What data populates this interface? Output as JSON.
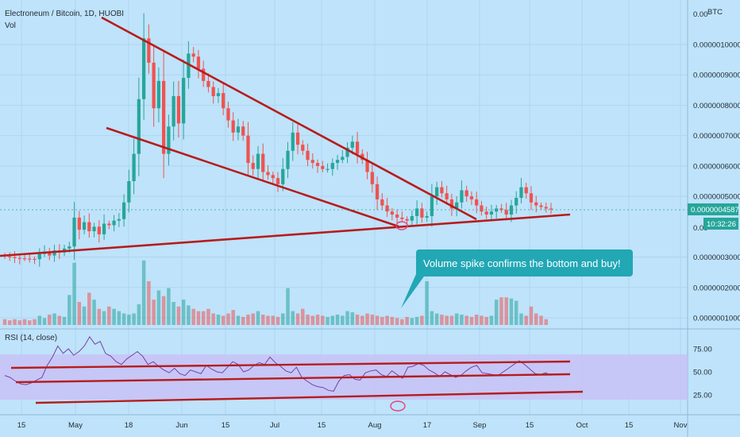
{
  "header": {
    "title": "Electroneum / Bitcoin, 1D, HUOBI",
    "vol_label": "Vol",
    "currency": "BTC"
  },
  "price_axis": {
    "ticks": [
      "0.0000010000",
      "0.0000009000",
      "0.0000008000",
      "0.0000007000",
      "0.0000006000",
      "0.0000005000",
      "0.0000003000",
      "0.0000002000",
      "0.0000001000"
    ],
    "top_partial": "0.00",
    "mid_partial": "0.00",
    "current_price": "0.0000004587",
    "countdown": "10:32:26"
  },
  "rsi": {
    "label": "RSI (14, close)",
    "ticks": [
      "75.00",
      "50.00",
      "25.00"
    ],
    "values": [
      46,
      44,
      40,
      37,
      36,
      38,
      41,
      44,
      57,
      66,
      78,
      70,
      75,
      68,
      72,
      78,
      88,
      80,
      83,
      70,
      67,
      61,
      58,
      64,
      68,
      72,
      67,
      58,
      61,
      56,
      52,
      49,
      54,
      48,
      46,
      52,
      50,
      48,
      57,
      53,
      50,
      49,
      55,
      61,
      58,
      50,
      52,
      57,
      60,
      58,
      66,
      60,
      56,
      51,
      49,
      55,
      44,
      40,
      36,
      34,
      33,
      30,
      29,
      40,
      46,
      47,
      42,
      41,
      49,
      51,
      52,
      47,
      45,
      51,
      47,
      43,
      55,
      56,
      59,
      57,
      52,
      49,
      45,
      50,
      47,
      44,
      46,
      51,
      55,
      57,
      49,
      48,
      47,
      46,
      50,
      54,
      58,
      62,
      58,
      53,
      48,
      47,
      49,
      46
    ]
  },
  "x_axis": {
    "ticks": [
      "15",
      "May",
      "18",
      "Jun",
      "15",
      "Jul",
      "15",
      "Aug",
      "17",
      "Sep",
      "15",
      "Oct",
      "15",
      "Nov"
    ]
  },
  "annotation": {
    "text": "Volume spike confirms the bottom and buy!"
  },
  "colors": {
    "background": "#bfe3fa",
    "up": "#26a69a",
    "down": "#ef5350",
    "trendline": "#b71c1c",
    "rsi_line": "#7b3fa6",
    "rsi_band": "#c8bff6",
    "callout": "#22a7b5",
    "price_tag": "#26a69a"
  },
  "chart_data": {
    "type": "candlestick",
    "title": "Electroneum / Bitcoin, 1D, HUOBI",
    "unit": "BTC",
    "ylim": [
      8e-08,
      1.1e-06
    ],
    "candles_close": [
      3.02e-07,
      3e-07,
      2.97e-07,
      2.96e-07,
      2.95e-07,
      2.94e-07,
      2.93e-07,
      3.1e-07,
      3.18e-07,
      3.05e-07,
      3.22e-07,
      3.15e-07,
      3.28e-07,
      3.35e-07,
      4.3e-07,
      3.9e-07,
      4.15e-07,
      3.85e-07,
      4e-07,
      3.75e-07,
      4.1e-07,
      4.05e-07,
      4.2e-07,
      4.25e-07,
      4.8e-07,
      5.5e-07,
      6.4e-07,
      8.2e-07,
      1.02e-06,
      9.4e-07,
      7.9e-07,
      8.8e-07,
      6.4e-07,
      7.3e-07,
      8.3e-07,
      7.4e-07,
      8.9e-07,
      9.7e-07,
      9.6e-07,
      9.2e-07,
      8.8e-07,
      8.6e-07,
      8.3e-07,
      8.4e-07,
      7.9e-07,
      7.5e-07,
      7.1e-07,
      7.3e-07,
      7e-07,
      6.1e-07,
      5.9e-07,
      6.4e-07,
      5.8e-07,
      5.7e-07,
      5.6e-07,
      5.4e-07,
      5.9e-07,
      6.5e-07,
      7.1e-07,
      6.7e-07,
      6.5e-07,
      6.2e-07,
      6.1e-07,
      6e-07,
      5.9e-07,
      5.9e-07,
      6.1e-07,
      6.2e-07,
      6.3e-07,
      6.6e-07,
      6.8e-07,
      6.4e-07,
      6.2e-07,
      5.8e-07,
      5.4e-07,
      4.9e-07,
      4.7e-07,
      4.5e-07,
      4.4e-07,
      4.3e-07,
      4.25e-07,
      4.2e-07,
      4.35e-07,
      4.6e-07,
      4.3e-07,
      4.35e-07,
      5e-07,
      5.3e-07,
      5.1e-07,
      4.9e-07,
      4.6e-07,
      4.8e-07,
      5.2e-07,
      5e-07,
      4.9e-07,
      4.7e-07,
      4.5e-07,
      4.4e-07,
      4.5e-07,
      4.6e-07,
      4.55e-07,
      4.4e-07,
      4.7e-07,
      4.95e-07,
      5.3e-07,
      5.1e-07,
      4.8e-07,
      4.7e-07,
      4.65e-07,
      4.6e-07,
      4.587e-07
    ],
    "volume_relative": [
      0.05,
      0.04,
      0.05,
      0.04,
      0.05,
      0.04,
      0.05,
      0.08,
      0.06,
      0.09,
      0.1,
      0.08,
      0.07,
      0.26,
      0.54,
      0.2,
      0.16,
      0.28,
      0.22,
      0.14,
      0.12,
      0.16,
      0.14,
      0.12,
      0.1,
      0.09,
      0.1,
      0.18,
      0.56,
      0.38,
      0.22,
      0.3,
      0.25,
      0.32,
      0.2,
      0.16,
      0.22,
      0.17,
      0.14,
      0.12,
      0.12,
      0.14,
      0.1,
      0.09,
      0.08,
      0.1,
      0.13,
      0.08,
      0.07,
      0.09,
      0.1,
      0.12,
      0.09,
      0.08,
      0.08,
      0.07,
      0.1,
      0.32,
      0.12,
      0.1,
      0.14,
      0.09,
      0.08,
      0.09,
      0.08,
      0.07,
      0.08,
      0.09,
      0.08,
      0.12,
      0.11,
      0.09,
      0.08,
      0.1,
      0.09,
      0.08,
      0.07,
      0.08,
      0.07,
      0.06,
      0.05,
      0.07,
      0.06,
      0.07,
      0.08,
      0.38,
      0.12,
      0.1,
      0.09,
      0.08,
      0.08,
      0.1,
      0.09,
      0.08,
      0.07,
      0.09,
      0.08,
      0.07,
      0.08,
      0.22,
      0.24,
      0.24,
      0.23,
      0.21,
      0.1,
      0.08,
      0.16,
      0.1,
      0.08,
      0.05
    ]
  }
}
